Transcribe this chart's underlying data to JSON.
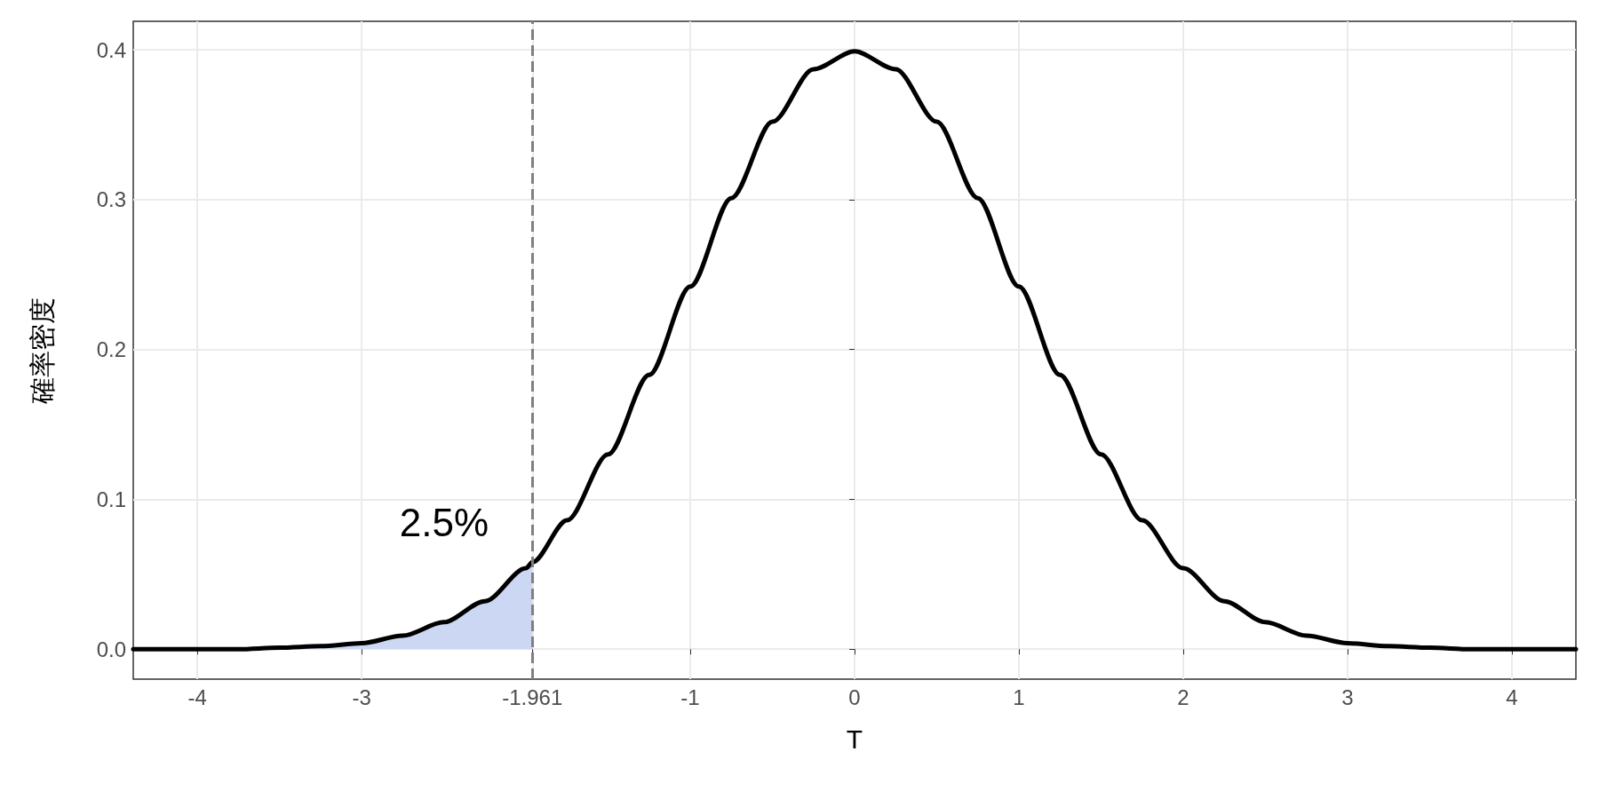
{
  "chart_data": {
    "type": "line",
    "xlabel": "T",
    "ylabel": "確率密度",
    "xlim": [
      -4.39,
      4.39
    ],
    "ylim": [
      -0.02,
      0.419
    ],
    "xticks": [
      -4,
      -3,
      -1.961,
      -1,
      0,
      1,
      2,
      3,
      4
    ],
    "yticks": [
      {
        "value": 0,
        "label": "0.0"
      },
      0.1,
      0.2,
      0.3,
      0.4
    ],
    "grid": true,
    "marker": "none",
    "series": [
      {
        "type": "area",
        "color": "#ccd7f4",
        "x": [
          -4.39,
          -4,
          -3.75,
          -3.5,
          -3.25,
          -3,
          -2.75,
          -2.5,
          -2.25,
          -2,
          -1.961
        ],
        "values": [
          0,
          0,
          0,
          0.001,
          0.002,
          0.004,
          0.009,
          0.018,
          0.032,
          0.054,
          0.058
        ]
      },
      {
        "color": "#000000",
        "x": [
          -4.39,
          -4,
          -3.75,
          -3.5,
          -3.25,
          -3,
          -2.75,
          -2.5,
          -2.25,
          -2,
          -1.961,
          -1.75,
          -1.5,
          -1.25,
          -1,
          -0.75,
          -0.5,
          -0.25,
          0,
          0.25,
          0.5,
          0.75,
          1,
          1.25,
          1.5,
          1.75,
          2,
          2.25,
          2.5,
          2.75,
          3,
          3.25,
          3.5,
          3.75,
          4,
          4.39
        ],
        "values": [
          0,
          0,
          0,
          0.001,
          0.002,
          0.004,
          0.009,
          0.018,
          0.032,
          0.054,
          0.058,
          0.086,
          0.13,
          0.183,
          0.242,
          0.301,
          0.352,
          0.387,
          0.399,
          0.387,
          0.352,
          0.301,
          0.242,
          0.183,
          0.13,
          0.086,
          0.054,
          0.032,
          0.018,
          0.009,
          0.004,
          0.002,
          0.001,
          0,
          0,
          0
        ]
      }
    ],
    "ref_lines": [
      {
        "axis": "x",
        "value": -1.961,
        "color": "#808080",
        "line_style": "dashed"
      }
    ],
    "annotations": [
      "2.5%"
    ]
  }
}
